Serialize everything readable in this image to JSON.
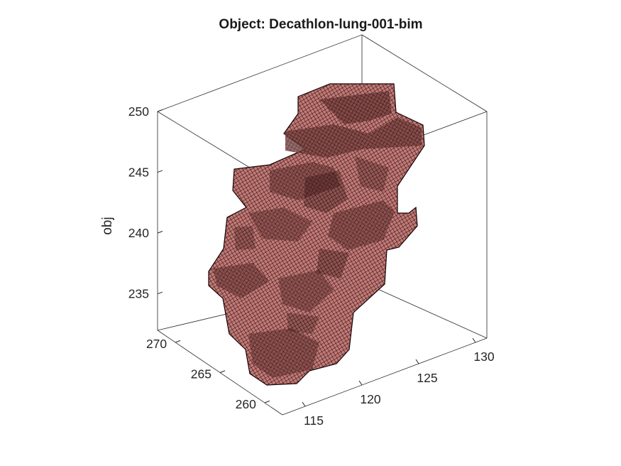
{
  "chart_data": {
    "type": "voxel-3d",
    "title": "Object: Decathlon-lung-001-bim",
    "zlabel": "obj",
    "xlabel": "",
    "ylabel": "",
    "x_axis": {
      "range": [
        113,
        131
      ],
      "ticks": [
        115,
        120,
        125,
        130
      ]
    },
    "y_axis": {
      "range": [
        258,
        272
      ],
      "ticks": [
        260,
        265,
        270
      ]
    },
    "z_axis": {
      "range": [
        232,
        250
      ],
      "ticks": [
        235,
        240,
        245,
        250
      ]
    },
    "grid": false,
    "box": "outline",
    "surface": {
      "face_color": "#e8908c",
      "edge_color": "#000000"
    }
  }
}
